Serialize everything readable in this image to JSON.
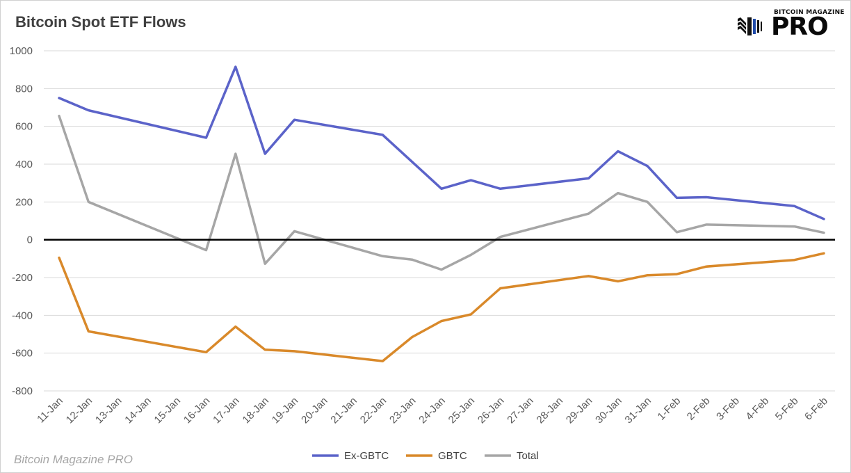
{
  "title": "Bitcoin Spot ETF Flows",
  "logo": {
    "small_text": "BITCOIN MAGAZINE",
    "big_text": "PRO"
  },
  "footer": "Bitcoin Magazine PRO",
  "colors": {
    "ex_gbtc": "#5b63c9",
    "gbtc": "#d9892a",
    "total": "#a6a6a6",
    "zero_line": "#000000",
    "grid": "#d9d9d9"
  },
  "chart_data": {
    "type": "line",
    "categories": [
      "11-Jan",
      "12-Jan",
      "13-Jan",
      "14-Jan",
      "15-Jan",
      "16-Jan",
      "17-Jan",
      "18-Jan",
      "19-Jan",
      "20-Jan",
      "21-Jan",
      "22-Jan",
      "23-Jan",
      "24-Jan",
      "25-Jan",
      "26-Jan",
      "27-Jan",
      "28-Jan",
      "29-Jan",
      "30-Jan",
      "31-Jan",
      "1-Feb",
      "2-Feb",
      "3-Feb",
      "4-Feb",
      "5-Feb",
      "6-Feb"
    ],
    "series": [
      {
        "name": "Ex-GBTC",
        "values": [
          750,
          685,
          null,
          null,
          null,
          540,
          915,
          455,
          635,
          null,
          null,
          555,
          null,
          270,
          315,
          270,
          null,
          null,
          325,
          468,
          390,
          222,
          225,
          null,
          null,
          178,
          110
        ]
      },
      {
        "name": "GBTC",
        "values": [
          -95,
          -485,
          null,
          null,
          null,
          -595,
          -460,
          -582,
          -590,
          null,
          null,
          -642,
          -515,
          -430,
          -395,
          -257,
          null,
          null,
          -192,
          -220,
          -188,
          -182,
          -142,
          null,
          null,
          -107,
          -72
        ]
      },
      {
        "name": "Total",
        "values": [
          655,
          200,
          null,
          null,
          null,
          -55,
          455,
          -127,
          45,
          null,
          null,
          -87,
          -105,
          -158,
          -80,
          15,
          null,
          null,
          138,
          247,
          200,
          40,
          80,
          null,
          null,
          70,
          37
        ]
      }
    ],
    "ylim": [
      -800,
      1000
    ],
    "yticks": [
      1000,
      800,
      600,
      400,
      200,
      0,
      -200,
      -400,
      -600,
      -800
    ],
    "grid": true,
    "legend_position": "bottom",
    "xlabel": "",
    "ylabel": ""
  }
}
